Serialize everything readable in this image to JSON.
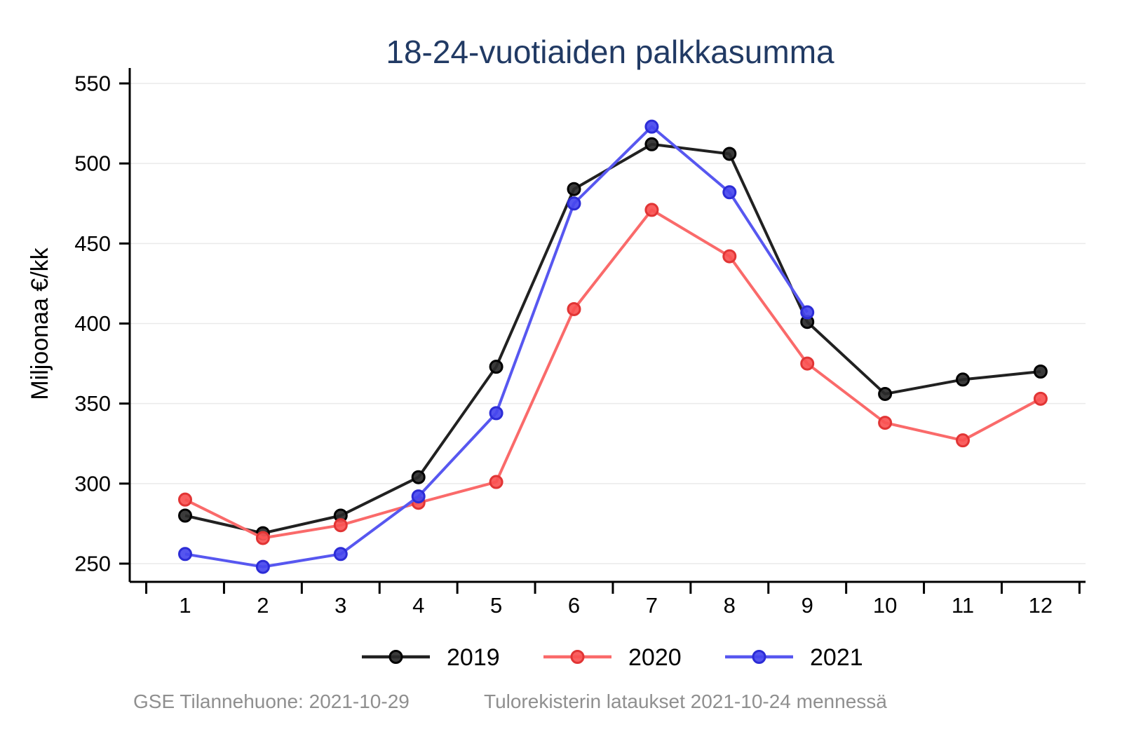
{
  "chart_data": {
    "type": "line",
    "title": "18-24-vuotiaiden palkkasumma",
    "xlabel": "",
    "ylabel": "Miljoonaa €/kk",
    "categories": [
      1,
      2,
      3,
      4,
      5,
      6,
      7,
      8,
      9,
      10,
      11,
      12
    ],
    "yticks": [
      250,
      300,
      350,
      400,
      450,
      500,
      550
    ],
    "ylim": [
      238,
      560
    ],
    "grid": "horizontal",
    "legend_position": "bottom",
    "series": [
      {
        "name": "2019",
        "color": "#212121",
        "marker_fill": "#2a2a2a",
        "marker_stroke": "#000000",
        "values": [
          280,
          269,
          280,
          304,
          373,
          484,
          512,
          506,
          401,
          356,
          365,
          370
        ]
      },
      {
        "name": "2020",
        "color": "#fa6a6a",
        "marker_fill": "#fa5252",
        "marker_stroke": "#e13535",
        "values": [
          290,
          266,
          274,
          288,
          301,
          409,
          471,
          442,
          375,
          338,
          327,
          353
        ]
      },
      {
        "name": "2021",
        "color": "#5757f0",
        "marker_fill": "#4646ee",
        "marker_stroke": "#2c2cd6",
        "values": [
          256,
          248,
          256,
          292,
          344,
          475,
          523,
          482,
          407
        ]
      }
    ]
  },
  "footer": {
    "left": "GSE Tilannehuone: 2021-10-29",
    "right": "Tulorekisterin lataukset 2021-10-24 mennessä"
  },
  "colors": {
    "title": "#213a64",
    "axis": "#000000",
    "tick_label": "#000000",
    "grid": "#eaeaea",
    "footer_text": "#8f8f8f",
    "background": "#ffffff"
  }
}
